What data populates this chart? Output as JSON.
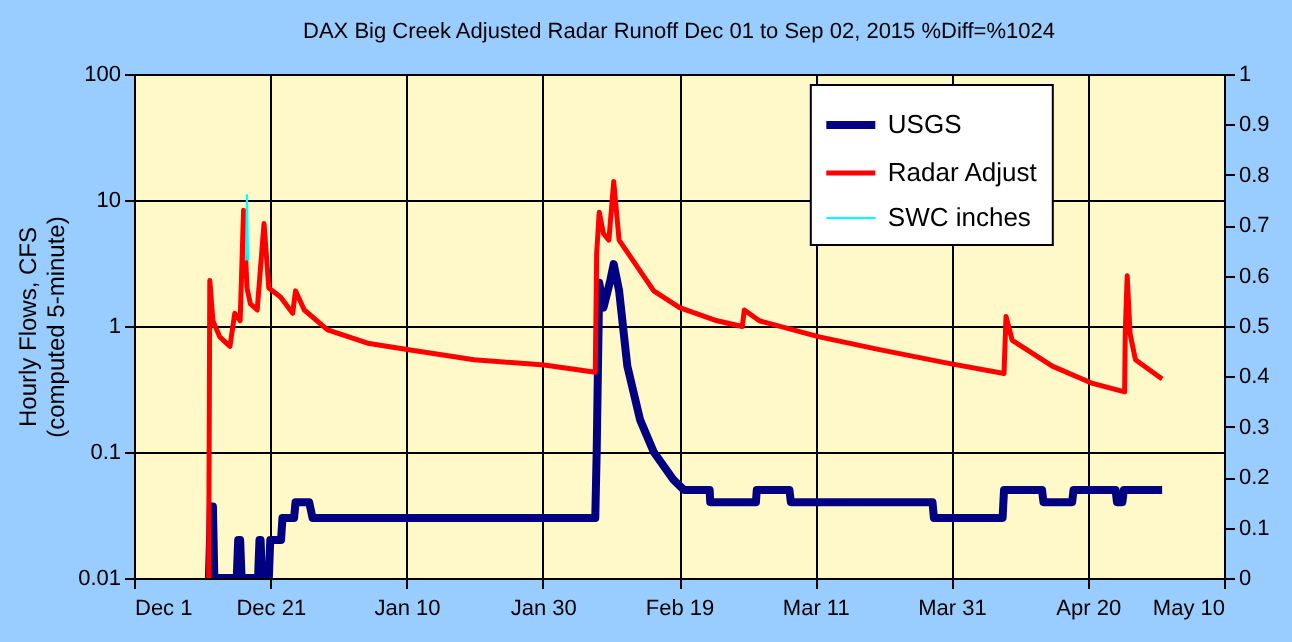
{
  "chart_data": {
    "type": "line",
    "title": "DAX Big Creek Adjusted Radar Runoff Dec 01 to Sep 02, 2015 %Diff=%1024",
    "ylabel": "Hourly Flows, CFS\n(computed 5-minute)",
    "xlim": [
      "2014-12-01",
      "2015-05-10"
    ],
    "xticks": [
      {
        "value": "2014-12-01",
        "label": "Dec 1"
      },
      {
        "value": "2014-12-21",
        "label": "Dec 21"
      },
      {
        "value": "2015-01-10",
        "label": "Jan 10"
      },
      {
        "value": "2015-01-30",
        "label": "Jan 30"
      },
      {
        "value": "2015-02-19",
        "label": "Feb 19"
      },
      {
        "value": "2015-03-11",
        "label": "Mar 11"
      },
      {
        "value": "2015-03-31",
        "label": "Mar 31"
      },
      {
        "value": "2015-04-20",
        "label": "Apr 20"
      },
      {
        "value": "2015-05-10",
        "label": "May 10"
      }
    ],
    "ylim": [
      0.01,
      100
    ],
    "yticks": [
      0.01,
      0.1,
      1,
      10,
      100
    ],
    "log": "y",
    "y2lim": [
      0,
      1
    ],
    "y2ticks": [
      0,
      0.1,
      0.2,
      0.3,
      0.4,
      0.5,
      0.6,
      0.7,
      0.8,
      0.9,
      1
    ],
    "grid": true,
    "legend": "top right",
    "series": [
      {
        "name": "USGS",
        "color": "#000080",
        "x": [
          "2014-12-12T00:00",
          "2014-12-12T07:00",
          "2014-12-12T14:00",
          "2014-12-12T19:00",
          "2014-12-16T02:00",
          "2014-12-16T07:00",
          "2014-12-16T14:00",
          "2014-12-16T19:00",
          "2014-12-19T05:00",
          "2014-12-19T10:00",
          "2014-12-19T14:00",
          "2014-12-19T19:00",
          "2014-12-20T19:00",
          "2014-12-21T00:00",
          "2014-12-22T14:00",
          "2014-12-22T19:00",
          "2014-12-24T12:00",
          "2014-12-24T17:00",
          "2014-12-26T17:00",
          "2014-12-27T05:00",
          "2015-02-06T17:00",
          "2015-02-06T22:00",
          "2015-02-07T07:00",
          "2015-02-07T22:00",
          "2015-02-08T22:00",
          "2015-02-09T10:00",
          "2015-02-10T05:00",
          "2015-02-11T10:00",
          "2015-02-13T07:00",
          "2015-02-15T07:00",
          "2015-02-18T05:00",
          "2015-02-19T17:00",
          "2015-02-23T12:00",
          "2015-02-23T14:00",
          "2015-03-02T07:00",
          "2015-03-02T10:00",
          "2015-03-07T05:00",
          "2015-03-07T10:00",
          "2015-03-28T05:00",
          "2015-03-28T10:00",
          "2015-04-07T12:00",
          "2015-04-07T17:00",
          "2015-04-13T07:00",
          "2015-04-13T12:00",
          "2015-04-17T17:00",
          "2015-04-17T22:00",
          "2015-04-24T02:00",
          "2015-04-24T07:00",
          "2015-04-25T02:00",
          "2015-04-25T07:00",
          "2015-04-30T22:00"
        ],
        "values": [
          0.01,
          0.037,
          0.037,
          0.01,
          0.01,
          0.02,
          0.02,
          0.01,
          0.01,
          0.02,
          0.02,
          0.01,
          0.01,
          0.02,
          0.02,
          0.03,
          0.03,
          0.04,
          0.04,
          0.03,
          0.03,
          0.1,
          2.2,
          1.4,
          2.3,
          3.1,
          1.9,
          0.48,
          0.18,
          0.1,
          0.06,
          0.05,
          0.05,
          0.04,
          0.04,
          0.05,
          0.05,
          0.04,
          0.04,
          0.03,
          0.03,
          0.05,
          0.05,
          0.04,
          0.04,
          0.05,
          0.05,
          0.04,
          0.04,
          0.05,
          0.05
        ]
      },
      {
        "name": "Radar Adjust",
        "color": "#ff0000",
        "x": [
          "2014-12-11T23:00",
          "2014-12-12T03:00",
          "2014-12-12T14:00",
          "2014-12-13T14:00",
          "2014-12-15T02:00",
          "2014-12-15T19:00",
          "2014-12-16T14:00",
          "2014-12-17T02:00",
          "2014-12-17T14:00",
          "2014-12-18T02:00",
          "2014-12-19T02:00",
          "2014-12-20T02:00",
          "2014-12-20T19:00",
          "2014-12-22T12:00",
          "2014-12-24T07:00",
          "2014-12-24T17:00",
          "2014-12-26T00:00",
          "2014-12-29T10:00",
          "2015-01-04T07:00",
          "2015-01-10T02:00",
          "2015-01-19T22:00",
          "2015-01-30T05:00",
          "2015-02-06T17:00",
          "2015-02-06T22:00",
          "2015-02-07T07:00",
          "2015-02-07T22:00",
          "2015-02-08T17:00",
          "2015-02-09T10:00",
          "2015-02-10T05:00",
          "2015-02-15T07:00",
          "2015-02-19T02:00",
          "2015-02-24T14:00",
          "2015-02-28T07:00",
          "2015-02-28T14:00",
          "2015-03-02T19:00",
          "2015-03-11T14:00",
          "2015-03-20T10:00",
          "2015-03-30T05:00",
          "2015-04-07T17:00",
          "2015-04-08T00:00",
          "2015-04-08T22:00",
          "2015-04-14T19:00",
          "2015-04-20T17:00",
          "2015-04-25T10:00",
          "2015-04-25T12:00",
          "2015-04-25T19:00",
          "2015-04-26T05:00",
          "2015-04-27T00:00",
          "2015-04-30T22:00"
        ],
        "values": [
          0.01,
          2.3,
          1.1,
          0.82,
          0.69,
          1.26,
          1.1,
          8.3,
          2.0,
          1.5,
          1.34,
          6.5,
          2.0,
          1.7,
          1.26,
          1.9,
          1.34,
          0.93,
          0.73,
          0.65,
          0.54,
          0.49,
          0.43,
          3.8,
          8.0,
          5.4,
          4.8,
          14,
          4.8,
          1.9,
          1.4,
          1.1,
          0.99,
          1.34,
          1.1,
          0.82,
          0.65,
          0.51,
          0.42,
          1.19,
          0.77,
          0.48,
          0.35,
          0.3,
          0.87,
          2.5,
          0.87,
          0.54,
          0.38
        ]
      },
      {
        "name": "SWC inches",
        "color": "#00ffff",
        "axis": "y2",
        "x": [
          "2014-12-17T10:00",
          "2014-12-17T14:00",
          "2014-12-17T18:00"
        ],
        "values": [
          0.63,
          0.76,
          0.63
        ]
      }
    ]
  }
}
